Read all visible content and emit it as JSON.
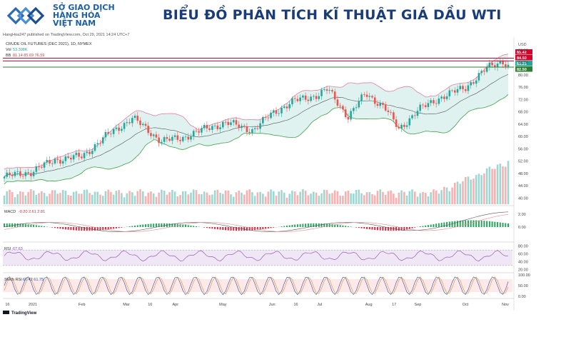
{
  "header": {
    "logo_lines": [
      "SỞ GIAO DỊCH",
      "HÀNG HÓA",
      "VIỆT NAM"
    ],
    "title": "BIỂU ĐỒ PHÂN TÍCH KĨ THUẬT GIÁ DẦU WTI",
    "published": "HangHoa247 published on TradingView.com, Oct 29, 2021 14:24 UTC+7"
  },
  "colors": {
    "up": "#26a69a",
    "down": "#ef5350",
    "bb_upper": "#e57f9b",
    "bb_lower": "#43a047",
    "bb_basis": "#555555",
    "resistance": "#d6002a",
    "support": "#2e7d32",
    "brand": "#1c5fa5"
  },
  "chart_data": {
    "type": "candlestick",
    "instrument": "CRUDE OIL FUTURES (DEC 2021), 1D, NYMEX",
    "volume_label": "Vol",
    "volume_value": "53.308K",
    "bb_label": "BB",
    "bb_values": "81.14  85.69  76.59",
    "currency": "USD",
    "price_axis": {
      "ticks": [
        "88.00",
        "84.00",
        "80.00",
        "76.00",
        "72.00",
        "68.00",
        "64.00",
        "60.00",
        "56.00",
        "52.00",
        "48.00",
        "44.00",
        "40.00"
      ],
      "range": [
        38,
        89
      ]
    },
    "price_levels": [
      {
        "label": "85.42",
        "value": 85.42,
        "kind": "resistance"
      },
      {
        "label": "84.50",
        "value": 84.5,
        "kind": "resistance"
      },
      {
        "label": "83.25",
        "value": 83.25,
        "kind": "last"
      },
      {
        "label": "82.50",
        "value": 82.5,
        "kind": "support"
      }
    ],
    "x_axis_ticks": [
      "16",
      "2021",
      "Feb",
      "Mar",
      "16",
      "Apr",
      "May",
      "Jun",
      "16",
      "Jul",
      "Aug",
      "17",
      "Sep",
      "Oct",
      "Nov"
    ],
    "price_path": [
      [
        "2020-12-14",
        46.9
      ],
      [
        "2020-12-31",
        48.5
      ],
      [
        "2021-01-15",
        52.4
      ],
      [
        "2021-02-01",
        53.5
      ],
      [
        "2021-02-16",
        60.0
      ],
      [
        "2021-03-05",
        66.0
      ],
      [
        "2021-03-23",
        58.5
      ],
      [
        "2021-04-05",
        59.5
      ],
      [
        "2021-04-20",
        62.5
      ],
      [
        "2021-05-03",
        64.5
      ],
      [
        "2021-05-20",
        62.0
      ],
      [
        "2021-06-01",
        67.5
      ],
      [
        "2021-06-15",
        71.5
      ],
      [
        "2021-06-30",
        73.5
      ],
      [
        "2021-07-06",
        75.3
      ],
      [
        "2021-07-19",
        66.4
      ],
      [
        "2021-07-30",
        73.9
      ],
      [
        "2021-08-11",
        69.5
      ],
      [
        "2021-08-20",
        62.3
      ],
      [
        "2021-09-01",
        68.5
      ],
      [
        "2021-09-15",
        72.6
      ],
      [
        "2021-10-01",
        75.9
      ],
      [
        "2021-10-15",
        82.3
      ],
      [
        "2021-10-25",
        84.6
      ],
      [
        "2021-10-28",
        82.8
      ]
    ],
    "macd": {
      "label": "MACD",
      "values": "-0.20  2.61  2.81",
      "ticks": [
        "2.00",
        "0.00"
      ]
    },
    "rsi": {
      "label": "RSI",
      "value": "67.63",
      "ticks": [
        "80.00",
        "60.00",
        "40.00",
        "20.00"
      ]
    },
    "stoch": {
      "label": "Stoch RSI",
      "values": "67.42  61.75",
      "ticks": [
        "100.00",
        "50.00",
        "0.00"
      ]
    },
    "watermark": "TradingView"
  }
}
